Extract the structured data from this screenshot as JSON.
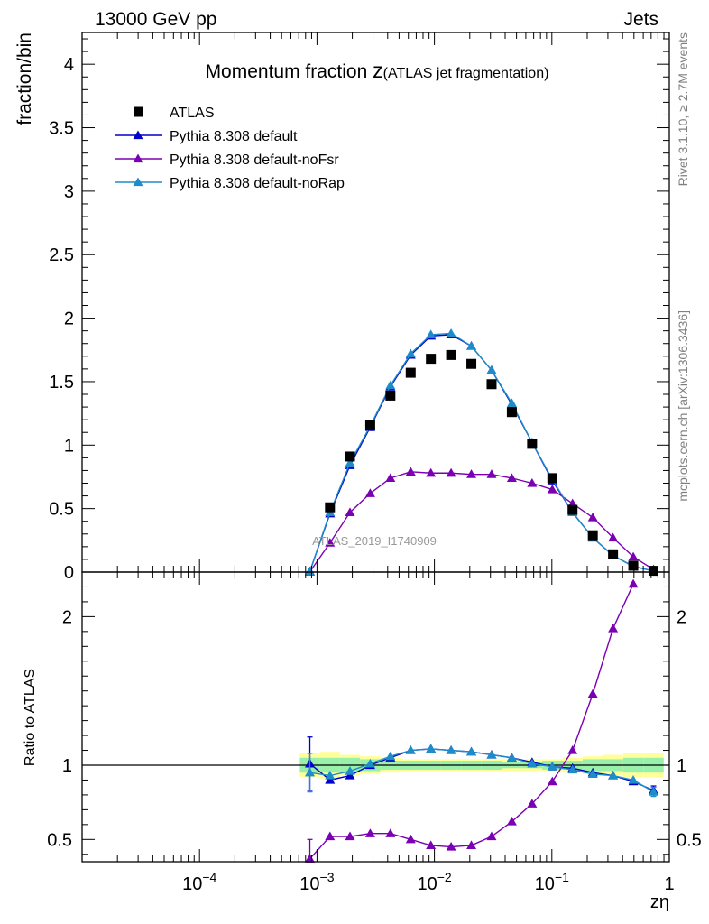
{
  "header": {
    "left": "13000 GeV pp",
    "right": "Jets"
  },
  "side_labels": {
    "rivet": "Rivet 3.1.10, ≥ 2.7M events",
    "mcplots": "mcplots.cern.ch [arXiv:1306.3436]"
  },
  "watermark": "ATLAS_2019_I1740909",
  "chart_data": {
    "type": "line",
    "title_main": "Momentum fraction ",
    "title_z": "z",
    "title_sub": "(ATLAS jet fragmentation)",
    "xlabel": "zη",
    "ylabel": "fraction/bin",
    "ratio_ylabel": "Ratio to ATLAS",
    "x_scale": "log",
    "xlim": [
      1e-05,
      1
    ],
    "ylim": [
      0,
      4.25
    ],
    "ratio_ylim": [
      0.35,
      2.3
    ],
    "x_ticks": [
      {
        "value": 0.0001,
        "base": "10",
        "exp": "−4"
      },
      {
        "value": 0.001,
        "base": "10",
        "exp": "−3"
      },
      {
        "value": 0.01,
        "base": "10",
        "exp": "−2"
      },
      {
        "value": 0.1,
        "base": "10",
        "exp": "−1"
      },
      {
        "value": 1,
        "base": "1",
        "exp": ""
      }
    ],
    "y_ticks": [
      {
        "value": 0,
        "label": "0"
      },
      {
        "value": 0.5,
        "label": "0.5"
      },
      {
        "value": 1,
        "label": "1"
      },
      {
        "value": 1.5,
        "label": "1.5"
      },
      {
        "value": 2,
        "label": "2"
      },
      {
        "value": 2.5,
        "label": "2.5"
      },
      {
        "value": 3,
        "label": "3"
      },
      {
        "value": 3.5,
        "label": "3.5"
      },
      {
        "value": 4,
        "label": "4"
      }
    ],
    "ratio_y_ticks": [
      {
        "value": 0.5,
        "label": "0.5"
      },
      {
        "value": 1,
        "label": "1"
      },
      {
        "value": 2,
        "label": "2"
      }
    ],
    "legend_position": "top-left",
    "x": [
      0.00087,
      0.00129,
      0.00191,
      0.00284,
      0.00422,
      0.00628,
      0.00933,
      0.01387,
      0.02063,
      0.03067,
      0.04562,
      0.06785,
      0.1009,
      0.15,
      0.2231,
      0.3318,
      0.4935,
      0.7339
    ],
    "data": {
      "name": "ATLAS",
      "color": "#000000",
      "values": [
        null,
        0.51,
        0.91,
        1.16,
        1.39,
        1.57,
        1.68,
        1.71,
        1.64,
        1.48,
        1.26,
        1.01,
        0.74,
        0.49,
        0.29,
        0.14,
        0.05,
        0.01
      ],
      "band_inner": [
        0.05,
        0.05,
        0.05,
        0.04,
        0.03,
        0.03,
        0.03,
        0.03,
        0.03,
        0.03,
        0.02,
        0.02,
        0.03,
        0.03,
        0.04,
        0.04,
        0.05,
        0.05
      ],
      "band_outer": [
        0.08,
        0.09,
        0.07,
        0.06,
        0.05,
        0.04,
        0.04,
        0.04,
        0.04,
        0.04,
        0.04,
        0.04,
        0.04,
        0.05,
        0.06,
        0.07,
        0.08,
        0.08
      ]
    },
    "series": [
      {
        "name": "Pythia 8.308 default",
        "color": "#0000cc",
        "values": [
          0.005,
          0.46,
          0.84,
          1.14,
          1.46,
          1.71,
          1.86,
          1.87,
          1.78,
          1.59,
          1.32,
          1.02,
          0.72,
          0.47,
          0.27,
          0.13,
          0.045,
          0.008
        ],
        "ratio": [
          1.01,
          0.9,
          0.93,
          1.0,
          1.05,
          1.1,
          1.11,
          1.1,
          1.09,
          1.07,
          1.05,
          1.02,
          0.99,
          0.98,
          0.95,
          0.93,
          0.89,
          0.83
        ],
        "ratio_err": [
          0.18,
          null,
          null,
          null,
          null,
          null,
          null,
          null,
          null,
          null,
          null,
          null,
          null,
          null,
          null,
          null,
          null,
          0.03
        ]
      },
      {
        "name": "Pythia 8.308 default-noFsr",
        "color": "#7b00b4",
        "values": [
          0.002,
          0.23,
          0.47,
          0.62,
          0.74,
          0.79,
          0.78,
          0.78,
          0.77,
          0.77,
          0.74,
          0.7,
          0.65,
          0.54,
          0.43,
          0.27,
          0.12,
          0.02
        ],
        "ratio": [
          0.37,
          0.52,
          0.52,
          0.54,
          0.54,
          0.5,
          0.46,
          0.45,
          0.46,
          0.52,
          0.62,
          0.74,
          0.89,
          1.1,
          1.48,
          1.92,
          2.22,
          null
        ],
        "ratio_err": [
          0.13,
          null,
          null,
          null,
          null,
          null,
          null,
          null,
          null,
          null,
          null,
          null,
          null,
          null,
          null,
          null,
          null,
          null
        ]
      },
      {
        "name": "Pythia 8.308 default-noRap",
        "color": "#1e8cc8",
        "values": [
          0.005,
          0.47,
          0.86,
          1.15,
          1.47,
          1.72,
          1.87,
          1.88,
          1.78,
          1.59,
          1.33,
          1.02,
          0.73,
          0.47,
          0.27,
          0.13,
          0.045,
          0.008
        ],
        "ratio": [
          0.95,
          0.93,
          0.96,
          1.01,
          1.06,
          1.1,
          1.11,
          1.1,
          1.09,
          1.07,
          1.05,
          1.01,
          0.99,
          0.97,
          0.94,
          0.93,
          0.9,
          0.82
        ],
        "ratio_err": [
          0.13,
          null,
          null,
          null,
          null,
          null,
          null,
          null,
          null,
          null,
          null,
          null,
          null,
          null,
          null,
          null,
          null,
          0.03
        ]
      }
    ]
  }
}
